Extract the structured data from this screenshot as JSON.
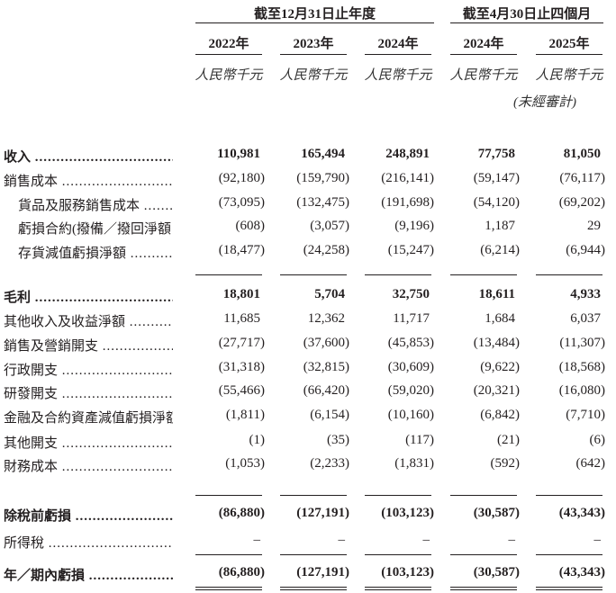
{
  "header": {
    "group_year": "截至12月31日止年度",
    "group_period": "截至4月30日止四個月",
    "columns": [
      "2022年",
      "2023年",
      "2024年",
      "2024年",
      "2025年"
    ],
    "unit": "人民幣千元",
    "unaudited": "(未經審計)"
  },
  "rows": [
    {
      "label": "收入",
      "values": [
        "110,981",
        "165,494",
        "248,891",
        "77,758",
        "81,050"
      ],
      "bold": true,
      "indent": false
    },
    {
      "label": "銷售成本",
      "values": [
        "(92,180)",
        "(159,790)",
        "(216,141)",
        "(59,147)",
        "(76,117)"
      ],
      "bold": false,
      "indent": false
    },
    {
      "label": "貨品及服務銷售成本",
      "values": [
        "(73,095)",
        "(132,475)",
        "(191,698)",
        "(54,120)",
        "(69,202)"
      ],
      "bold": false,
      "indent": true
    },
    {
      "label": "虧損合約(撥備／撥回淨額",
      "values": [
        "(608)",
        "(3,057)",
        "(9,196)",
        "1,187",
        "29"
      ],
      "bold": false,
      "indent": true
    },
    {
      "label": "存貨減值虧損淨額",
      "values": [
        "(18,477)",
        "(24,258)",
        "(15,247)",
        "(6,214)",
        "(6,944)"
      ],
      "bold": false,
      "indent": true
    },
    {
      "label": "毛利",
      "values": [
        "18,801",
        "5,704",
        "32,750",
        "18,611",
        "4,933"
      ],
      "bold": true,
      "indent": false
    },
    {
      "label": "其他收入及收益淨額",
      "values": [
        "11,685",
        "12,362",
        "11,717",
        "1,684",
        "6,037"
      ],
      "bold": false,
      "indent": false
    },
    {
      "label": "銷售及營銷開支",
      "values": [
        "(27,717)",
        "(37,600)",
        "(45,853)",
        "(13,484)",
        "(11,307)"
      ],
      "bold": false,
      "indent": false
    },
    {
      "label": "行政開支",
      "values": [
        "(31,318)",
        "(32,815)",
        "(30,609)",
        "(9,622)",
        "(18,568)"
      ],
      "bold": false,
      "indent": false
    },
    {
      "label": "研發開支",
      "values": [
        "(55,466)",
        "(66,420)",
        "(59,020)",
        "(20,321)",
        "(16,080)"
      ],
      "bold": false,
      "indent": false
    },
    {
      "label": "金融及合約資產減值虧損淨額",
      "values": [
        "(1,811)",
        "(6,154)",
        "(10,160)",
        "(6,842)",
        "(7,710)"
      ],
      "bold": false,
      "indent": false
    },
    {
      "label": "其他開支",
      "values": [
        "(1)",
        "(35)",
        "(117)",
        "(21)",
        "(6)"
      ],
      "bold": false,
      "indent": false
    },
    {
      "label": "財務成本",
      "values": [
        "(1,053)",
        "(2,233)",
        "(1,831)",
        "(592)",
        "(642)"
      ],
      "bold": false,
      "indent": false
    },
    {
      "label": "除稅前虧損",
      "values": [
        "(86,880)",
        "(127,191)",
        "(103,123)",
        "(30,587)",
        "(43,343)"
      ],
      "bold": true,
      "indent": false
    },
    {
      "label": "所得稅",
      "values": [
        "–",
        "–",
        "–",
        "–",
        "–"
      ],
      "bold": false,
      "indent": false
    },
    {
      "label": "年／期內虧損",
      "values": [
        "(86,880)",
        "(127,191)",
        "(103,123)",
        "(30,587)",
        "(43,343)"
      ],
      "bold": true,
      "indent": false
    }
  ]
}
